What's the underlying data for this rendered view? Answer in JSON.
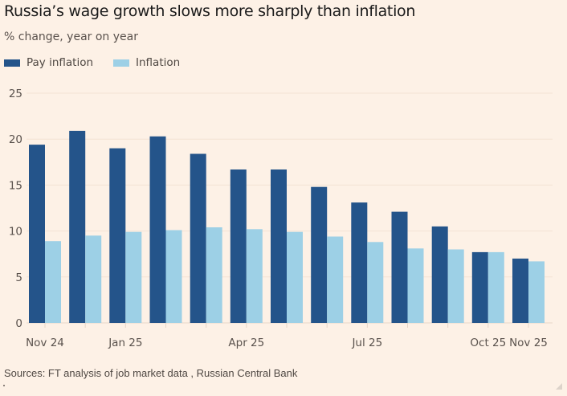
{
  "colors": {
    "background": "#fdf1e6",
    "pay_inflation": "#24548a",
    "inflation": "#9dd0e6",
    "gridline": "#f3e2d4",
    "axis_text": "#5a524d"
  },
  "chart_data": {
    "type": "bar",
    "title": "Russia’s wage growth slows more sharply than inflation",
    "subtitle": "% change, year on year",
    "xlabel": "",
    "ylabel": "",
    "ylim": [
      0,
      25
    ],
    "yticks": [
      0,
      5,
      10,
      15,
      20,
      25
    ],
    "grid": true,
    "legend_position": "top-left",
    "categories": [
      "Nov 24",
      "Dec 24",
      "Jan 25",
      "Feb 25",
      "Mar 25",
      "Apr 25",
      "May 25",
      "Jun 25",
      "Jul 25",
      "Aug 25",
      "Sep 25",
      "Oct 25",
      "Nov 25"
    ],
    "xtick_labels": [
      {
        "index": 0,
        "label": "Nov 24"
      },
      {
        "index": 2,
        "label": "Jan 25"
      },
      {
        "index": 5,
        "label": "Apr 25"
      },
      {
        "index": 8,
        "label": "Jul 25"
      },
      {
        "index": 11,
        "label": "Oct 25"
      },
      {
        "index": 12,
        "label": "Nov 25"
      }
    ],
    "series": [
      {
        "name": "Pay inflation",
        "color": "#24548a",
        "values": [
          19.4,
          20.9,
          19.0,
          20.3,
          18.4,
          16.7,
          16.7,
          14.8,
          13.1,
          12.1,
          10.5,
          7.7,
          7.0
        ]
      },
      {
        "name": "Inflation",
        "color": "#9dd0e6",
        "values": [
          8.9,
          9.5,
          9.9,
          10.1,
          10.4,
          10.2,
          9.9,
          9.4,
          8.8,
          8.1,
          8.0,
          7.7,
          6.7
        ]
      }
    ],
    "source": "Sources: FT analysis of job market data , Russian Central Bank"
  }
}
